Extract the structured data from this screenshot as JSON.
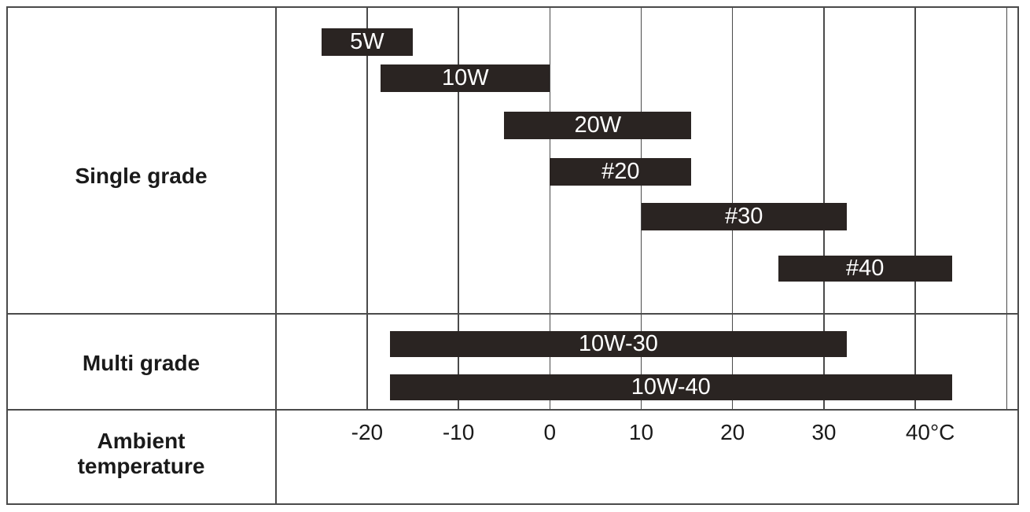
{
  "chart_data": {
    "type": "bar",
    "subtype": "horizontal-temperature-range",
    "title": "",
    "xlabel": "Ambient temperature",
    "ylabel": "",
    "x_unit": "°C",
    "xlim": [
      -30,
      51.4
    ],
    "grid": "vertical, every 10°C from -20 to 50",
    "x_ticks": [
      {
        "label": "-20",
        "value": -20
      },
      {
        "label": "-10",
        "value": -10
      },
      {
        "label": "0",
        "value": 0
      },
      {
        "label": "10",
        "value": 10
      },
      {
        "label": "20",
        "value": 20
      },
      {
        "label": "30",
        "value": 30
      },
      {
        "label": "40°C",
        "value": 40
      },
      {
        "label": "",
        "value": 50
      }
    ],
    "groups": [
      {
        "label": "Single grade"
      },
      {
        "label": "Multi grade"
      }
    ],
    "categories": [
      "5W",
      "10W",
      "20W",
      "#20",
      "#30",
      "#40",
      "10W-30",
      "10W-40"
    ],
    "bars": [
      {
        "name": "5W",
        "group": "Single grade",
        "min_c": -25,
        "max_c": -15
      },
      {
        "name": "10W",
        "group": "Single grade",
        "min_c": -18.5,
        "max_c": 0
      },
      {
        "name": "20W",
        "group": "Single grade",
        "min_c": -5,
        "max_c": 15.5
      },
      {
        "name": "#20",
        "group": "Single grade",
        "min_c": 0,
        "max_c": 15.5
      },
      {
        "name": "#30",
        "group": "Single grade",
        "min_c": 10,
        "max_c": 32.5
      },
      {
        "name": "#40",
        "group": "Single grade",
        "min_c": 25,
        "max_c": 44
      },
      {
        "name": "10W-30",
        "group": "Multi grade",
        "min_c": -17.5,
        "max_c": 32.5
      },
      {
        "name": "10W-40",
        "group": "Multi grade",
        "min_c": -17.5,
        "max_c": 44
      }
    ],
    "bar_color": "#2a2422",
    "bar_label_color": "#ffffff",
    "line_color": "#4a4a4a",
    "background_color": "#ffffff"
  }
}
